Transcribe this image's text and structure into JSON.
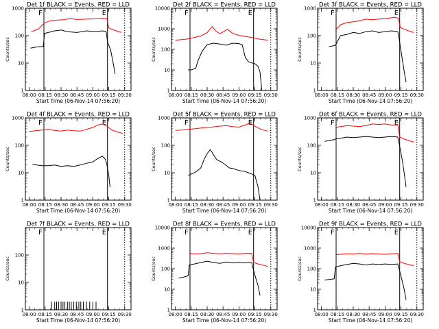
{
  "chart_data": [
    {
      "type": "line",
      "title": "Det 1f BLACK = Events, RED = LLD",
      "xlabel": "Start Time (06-Nov-14 07:56:20)",
      "ylabel": "Counts/sec",
      "yscale": "log",
      "ylim": [
        1,
        1000
      ],
      "xticks": [
        "08:00",
        "08:15",
        "08:30",
        "08:45",
        "09:00",
        "09:15",
        "09:30"
      ],
      "yticks": [
        "1",
        "10",
        "100",
        "1000"
      ],
      "markers": [
        {
          "time": 8.23,
          "label": "F",
          "style": "solid"
        },
        {
          "time": 9.23,
          "label": "E",
          "style": "solid"
        },
        {
          "time": 9.5,
          "style": "dotted"
        }
      ],
      "series": [
        {
          "color": "#ff0000",
          "x": [
            8.03,
            8.07,
            8.15,
            8.23,
            8.33,
            8.45,
            8.55,
            8.63,
            8.75,
            8.9,
            9.05,
            9.15,
            9.22,
            9.25,
            9.3,
            9.37,
            9.45
          ],
          "y": [
            140,
            150,
            180,
            280,
            350,
            370,
            380,
            420,
            390,
            400,
            410,
            430,
            420,
            190,
            170,
            150,
            130
          ]
        },
        {
          "color": "#000000",
          "x": [
            8.02,
            8.1,
            8.22,
            8.24,
            8.3,
            8.4,
            8.5,
            8.6,
            8.75,
            8.9,
            9.05,
            9.15,
            9.21,
            9.23,
            9.28,
            9.32,
            9.35
          ],
          "y": [
            35,
            38,
            40,
            120,
            130,
            150,
            160,
            140,
            130,
            150,
            140,
            150,
            140,
            60,
            30,
            10,
            4
          ]
        }
      ]
    },
    {
      "type": "line",
      "title": "Det 2f BLACK = Events, RED = LLD",
      "xlabel": "Start Time (06-Nov-14 07:56:20)",
      "ylabel": "Counts/sec",
      "yscale": "log",
      "ylim": [
        1,
        10000
      ],
      "xticks": [
        "08:00",
        "08:15",
        "08:30",
        "08:45",
        "09:00",
        "09:15",
        "09:30"
      ],
      "yticks": [
        "1",
        "10",
        "100",
        "1000",
        "10000"
      ],
      "markers": [
        {
          "time": 8.23,
          "label": "F",
          "style": "solid"
        },
        {
          "time": 9.23,
          "label": "E",
          "style": "solid"
        },
        {
          "time": 9.5,
          "style": "dotted"
        }
      ],
      "series": [
        {
          "color": "#ff0000",
          "x": [
            8.0,
            8.1,
            8.2,
            8.3,
            8.4,
            8.5,
            8.58,
            8.63,
            8.7,
            8.75,
            8.82,
            8.9,
            9.0,
            9.1,
            9.2,
            9.3,
            9.45
          ],
          "y": [
            280,
            300,
            320,
            380,
            450,
            650,
            1300,
            800,
            580,
            700,
            950,
            600,
            480,
            420,
            380,
            320,
            280
          ]
        },
        {
          "color": "#000000",
          "x": [
            8.2,
            8.25,
            8.32,
            8.36,
            8.42,
            8.5,
            8.6,
            8.7,
            8.8,
            8.9,
            9.0,
            9.05,
            9.1,
            9.15,
            9.2,
            9.25,
            9.3,
            9.33,
            9.36
          ],
          "y": [
            10,
            10,
            12,
            30,
            80,
            170,
            200,
            180,
            160,
            200,
            190,
            170,
            40,
            25,
            22,
            20,
            15,
            8,
            1
          ]
        }
      ]
    },
    {
      "type": "line",
      "title": "Det 3f BLACK = Events, RED = LLD",
      "xlabel": "Start Time (06-Nov-14 07:56:20)",
      "ylabel": "Counts/sec",
      "yscale": "log",
      "ylim": [
        1,
        1000
      ],
      "xticks": [
        "08:00",
        "08:15",
        "08:30",
        "08:45",
        "09:00",
        "09:15",
        "09:30"
      ],
      "yticks": [
        "1",
        "10",
        "100",
        "1000"
      ],
      "markers": [
        {
          "time": 8.23,
          "label": "F",
          "style": "solid"
        },
        {
          "time": 9.23,
          "label": "E",
          "style": "solid"
        },
        {
          "time": 9.5,
          "style": "dotted"
        }
      ],
      "series": [
        {
          "color": "#ff0000",
          "x": [
            8.22,
            8.3,
            8.4,
            8.5,
            8.6,
            8.7,
            8.8,
            8.9,
            9.0,
            9.1,
            9.15,
            9.21,
            9.24,
            9.3,
            9.37,
            9.45
          ],
          "y": [
            160,
            250,
            300,
            320,
            350,
            400,
            380,
            400,
            420,
            450,
            470,
            430,
            200,
            170,
            150,
            130
          ]
        },
        {
          "color": "#000000",
          "x": [
            8.12,
            8.17,
            8.22,
            8.3,
            8.4,
            8.5,
            8.6,
            8.7,
            8.8,
            8.9,
            9.0,
            9.1,
            9.2,
            9.22,
            9.26,
            9.3,
            9.33
          ],
          "y": [
            40,
            42,
            45,
            100,
            110,
            130,
            120,
            140,
            150,
            130,
            140,
            150,
            140,
            80,
            20,
            5,
            2
          ]
        }
      ]
    },
    {
      "type": "line",
      "title": "Det 4f BLACK = Events, RED = LLD",
      "xlabel": "Start Time (06-Nov-14 07:56:20)",
      "ylabel": "Counts/sec",
      "yscale": "log",
      "ylim": [
        1,
        1000
      ],
      "xticks": [
        "08:00",
        "08:15",
        "08:30",
        "08:45",
        "09:00",
        "09:15",
        "09:30"
      ],
      "yticks": [
        "1",
        "10",
        "100",
        "1000"
      ],
      "markers": [
        {
          "time": 8.23,
          "label": "F",
          "style": "solid"
        },
        {
          "time": 9.23,
          "label": "E",
          "style": "solid"
        },
        {
          "time": 9.5,
          "style": "dotted"
        }
      ],
      "series": [
        {
          "color": "#ff0000",
          "x": [
            8.0,
            8.1,
            8.2,
            8.3,
            8.4,
            8.5,
            8.6,
            8.7,
            8.8,
            8.9,
            9.0,
            9.08,
            9.15,
            9.22,
            9.3,
            9.4,
            9.47
          ],
          "y": [
            320,
            340,
            360,
            380,
            350,
            330,
            360,
            340,
            330,
            380,
            450,
            550,
            600,
            500,
            360,
            300,
            270
          ]
        },
        {
          "color": "#000000",
          "x": [
            8.05,
            8.12,
            8.2,
            8.3,
            8.4,
            8.5,
            8.6,
            8.7,
            8.8,
            8.9,
            9.0,
            9.05,
            9.1,
            9.15,
            9.2,
            9.22,
            9.25,
            9.27
          ],
          "y": [
            20,
            19,
            18,
            18,
            19,
            17,
            18,
            17,
            19,
            22,
            25,
            30,
            35,
            40,
            30,
            20,
            8,
            3
          ]
        }
      ]
    },
    {
      "type": "line",
      "title": "Det 5f BLACK = Events, RED = LLD",
      "xlabel": "Start Time (06-Nov-14 07:56:20)",
      "ylabel": "Counts/sec",
      "yscale": "log",
      "ylim": [
        1,
        1000
      ],
      "xticks": [
        "08:00",
        "08:15",
        "08:30",
        "08:45",
        "09:00",
        "09:15",
        "09:30"
      ],
      "yticks": [
        "1",
        "10",
        "100",
        "1000"
      ],
      "markers": [
        {
          "time": 8.23,
          "label": "F",
          "style": "solid"
        },
        {
          "time": 9.23,
          "label": "E",
          "style": "solid"
        },
        {
          "time": 9.5,
          "style": "dotted"
        }
      ],
      "series": [
        {
          "color": "#ff0000",
          "x": [
            8.0,
            8.1,
            8.2,
            8.3,
            8.4,
            8.5,
            8.6,
            8.7,
            8.8,
            8.9,
            9.0,
            9.1,
            9.17,
            9.25,
            9.35,
            9.45
          ],
          "y": [
            350,
            360,
            380,
            400,
            430,
            450,
            470,
            500,
            520,
            480,
            460,
            550,
            650,
            500,
            380,
            330
          ]
        },
        {
          "color": "#000000",
          "x": [
            8.2,
            8.25,
            8.3,
            8.35,
            8.4,
            8.45,
            8.5,
            8.55,
            8.6,
            8.65,
            8.72,
            8.78,
            8.85,
            8.92,
            9.0,
            9.1,
            9.15,
            9.2,
            9.25,
            9.3,
            9.33
          ],
          "y": [
            8,
            9,
            10,
            12,
            15,
            30,
            50,
            70,
            45,
            30,
            25,
            20,
            15,
            14,
            12,
            11,
            10,
            9,
            8,
            3,
            1
          ]
        }
      ]
    },
    {
      "type": "line",
      "title": "Det 6f BLACK = Events, RED = LLD",
      "xlabel": "Start Time (06-Nov-14 07:56:20)",
      "ylabel": "Counts/sec",
      "yscale": "log",
      "ylim": [
        1,
        1000
      ],
      "xticks": [
        "08:00",
        "08:15",
        "08:30",
        "08:45",
        "09:00",
        "09:15",
        "09:30"
      ],
      "yticks": [
        "1",
        "10",
        "100",
        "1000"
      ],
      "markers": [
        {
          "time": 8.23,
          "label": "F",
          "style": "solid"
        },
        {
          "time": 9.23,
          "label": "E",
          "style": "solid"
        },
        {
          "time": 9.5,
          "style": "dotted"
        }
      ],
      "series": [
        {
          "color": "#ff0000",
          "x": [
            8.22,
            8.3,
            8.4,
            8.5,
            8.6,
            8.7,
            8.8,
            8.9,
            9.0,
            9.1,
            9.2,
            9.23,
            9.3,
            9.37,
            9.45
          ],
          "y": [
            450,
            480,
            520,
            500,
            480,
            530,
            600,
            580,
            600,
            550,
            560,
            200,
            170,
            150,
            130
          ]
        },
        {
          "color": "#000000",
          "x": [
            8.05,
            8.12,
            8.2,
            8.22,
            8.3,
            8.4,
            8.5,
            8.6,
            8.7,
            8.8,
            8.9,
            9.0,
            9.1,
            9.2,
            9.22,
            9.27,
            9.3,
            9.33
          ],
          "y": [
            140,
            150,
            160,
            170,
            180,
            200,
            190,
            200,
            210,
            200,
            190,
            200,
            210,
            200,
            120,
            30,
            10,
            3
          ]
        }
      ]
    },
    {
      "type": "bar",
      "title": "Det 7f BLACK = Events, RED = LLD",
      "xlabel": "Start Time (06-Nov-14 07:56:20)",
      "ylabel": "Counts/sec",
      "yscale": "log",
      "ylim": [
        1,
        1000
      ],
      "xticks": [
        "08:00",
        "08:15",
        "08:30",
        "08:45",
        "09:00",
        "09:15",
        "09:30"
      ],
      "yticks": [
        "1",
        "10",
        "100"
      ],
      "markers": [
        {
          "time": 8.23,
          "label": "F",
          "style": "solid"
        },
        {
          "time": 9.23,
          "label": "E",
          "style": "solid"
        },
        {
          "time": 9.5,
          "style": "dotted"
        }
      ],
      "series": [
        {
          "color": "#000000",
          "x": [
            8.35,
            8.4,
            8.43,
            8.46,
            8.5,
            8.53,
            8.56,
            8.6,
            8.63,
            8.66,
            8.7,
            8.74,
            8.78,
            8.81,
            8.85,
            8.9,
            8.95,
            9.0,
            9.05
          ],
          "y": [
            2,
            2,
            2,
            2,
            2,
            2,
            2,
            2,
            2,
            2,
            2,
            2,
            2,
            2,
            2,
            2,
            2,
            2,
            2
          ]
        }
      ]
    },
    {
      "type": "line",
      "title": "Det 8f BLACK = Events, RED = LLD",
      "xlabel": "Start Time (06-Nov-14 07:56:20)",
      "ylabel": "Counts/sec",
      "yscale": "log",
      "ylim": [
        1,
        10000
      ],
      "xticks": [
        "08:00",
        "08:15",
        "08:30",
        "08:45",
        "09:00",
        "09:15",
        "09:30"
      ],
      "yticks": [
        "1",
        "10",
        "100",
        "1000",
        "10000"
      ],
      "markers": [
        {
          "time": 8.23,
          "label": "F",
          "style": "solid"
        },
        {
          "time": 9.23,
          "label": "E",
          "style": "solid"
        },
        {
          "time": 9.5,
          "style": "dotted"
        }
      ],
      "series": [
        {
          "color": "#ff0000",
          "x": [
            8.22,
            8.3,
            8.4,
            8.5,
            8.6,
            8.7,
            8.8,
            8.9,
            9.0,
            9.1,
            9.2,
            9.23,
            9.3,
            9.37,
            9.45
          ],
          "y": [
            550,
            520,
            540,
            600,
            550,
            530,
            560,
            540,
            520,
            550,
            560,
            200,
            170,
            150,
            130
          ]
        },
        {
          "color": "#000000",
          "x": [
            8.05,
            8.12,
            8.2,
            8.22,
            8.3,
            8.4,
            8.5,
            8.6,
            8.7,
            8.8,
            8.9,
            9.0,
            9.1,
            9.2,
            9.22,
            9.27,
            9.3,
            9.33
          ],
          "y": [
            35,
            38,
            45,
            150,
            170,
            200,
            230,
            200,
            180,
            210,
            190,
            200,
            190,
            200,
            110,
            30,
            15,
            5
          ]
        }
      ]
    },
    {
      "type": "line",
      "title": "Det 9f BLACK = Events, RED = LLD",
      "xlabel": "Start Time (06-Nov-14 07:56:20)",
      "ylabel": "Counts/sec",
      "yscale": "log",
      "ylim": [
        1,
        10000
      ],
      "xticks": [
        "08:00",
        "08:15",
        "08:30",
        "08:45",
        "09:00",
        "09:15",
        "09:30"
      ],
      "yticks": [
        "1",
        "10",
        "100",
        "1000",
        "10000"
      ],
      "markers": [
        {
          "time": 8.23,
          "label": "F",
          "style": "solid"
        },
        {
          "time": 9.23,
          "label": "E",
          "style": "solid"
        },
        {
          "time": 9.5,
          "style": "dotted"
        }
      ],
      "series": [
        {
          "color": "#ff0000",
          "x": [
            8.22,
            8.3,
            8.4,
            8.5,
            8.6,
            8.7,
            8.8,
            8.9,
            9.0,
            9.1,
            9.2,
            9.23,
            9.3,
            9.37,
            9.45
          ],
          "y": [
            480,
            500,
            530,
            520,
            550,
            510,
            540,
            520,
            500,
            530,
            550,
            220,
            180,
            160,
            140
          ]
        },
        {
          "color": "#000000",
          "x": [
            8.05,
            8.12,
            8.2,
            8.22,
            8.3,
            8.4,
            8.5,
            8.6,
            8.7,
            8.8,
            8.9,
            9.0,
            9.1,
            9.2,
            9.22,
            9.27,
            9.3,
            9.33
          ],
          "y": [
            28,
            30,
            32,
            120,
            140,
            160,
            180,
            170,
            150,
            170,
            160,
            170,
            160,
            170,
            100,
            25,
            10,
            3
          ]
        }
      ]
    }
  ]
}
